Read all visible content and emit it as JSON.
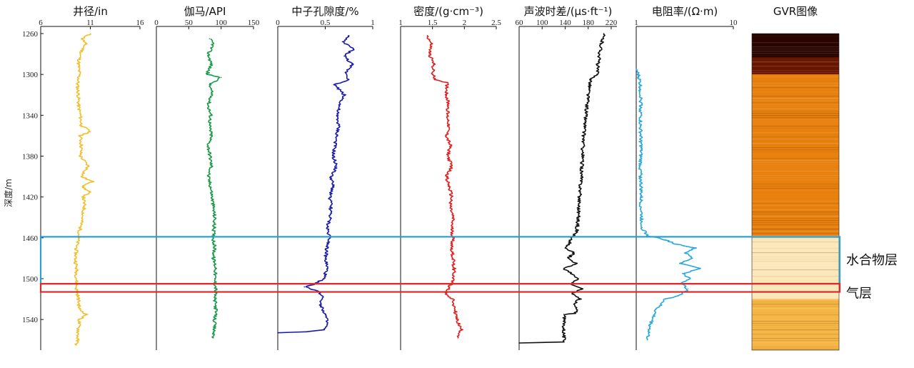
{
  "chart_data": {
    "type": "line",
    "y_axis": {
      "label": "深度/m",
      "range": [
        1260,
        1570
      ],
      "ticks": [
        "1260",
        "1300",
        "1340",
        "1380",
        "1420",
        "1460",
        "1500",
        "1540"
      ],
      "reversed": true
    },
    "tracks": [
      {
        "title": "井径/in",
        "xlim": [
          6,
          16
        ],
        "ticks": [
          "6",
          "11",
          "16"
        ],
        "color": "#f2bf2e",
        "series": [
          {
            "depth": [
              1260,
              1265,
              1270,
              1280,
              1290,
              1300,
              1310,
              1320,
              1330,
              1340,
              1350,
              1356,
              1360,
              1370,
              1380,
              1390,
              1400,
              1405,
              1410,
              1415,
              1420,
              1430,
              1440,
              1450,
              1460,
              1470,
              1480,
              1490,
              1500,
              1510,
              1520,
              1530,
              1535,
              1540,
              1550,
              1560,
              1565
            ],
            "values": [
              11.0,
              10.2,
              10.5,
              10.0,
              9.8,
              9.9,
              9.7,
              9.8,
              9.8,
              10.0,
              10.1,
              11.0,
              10.0,
              10.1,
              10.0,
              10.8,
              10.1,
              11.2,
              10.2,
              10.9,
              10.3,
              10.4,
              10.2,
              10.0,
              9.8,
              9.6,
              9.5,
              9.6,
              9.6,
              9.6,
              9.8,
              9.9,
              10.6,
              9.9,
              9.8,
              9.7,
              9.6
            ]
          }
        ]
      },
      {
        "title": "伽马/API",
        "xlim": [
          0,
          150
        ],
        "ticks": [
          "0",
          "50",
          "100",
          "150"
        ],
        "color": "#1a9a4a",
        "series": [
          {
            "depth": [
              1265,
              1270,
              1280,
              1290,
              1300,
              1303,
              1310,
              1320,
              1330,
              1340,
              1350,
              1360,
              1370,
              1380,
              1390,
              1400,
              1410,
              1420,
              1430,
              1440,
              1450,
              1460,
              1470,
              1480,
              1490,
              1500,
              1510,
              1520,
              1530,
              1540,
              1550,
              1558
            ],
            "values": [
              82,
              88,
              80,
              85,
              78,
              100,
              82,
              86,
              80,
              84,
              82,
              85,
              80,
              83,
              85,
              80,
              84,
              86,
              88,
              90,
              89,
              88,
              90,
              88,
              92,
              90,
              92,
              90,
              92,
              90,
              89,
              88
            ]
          }
        ]
      },
      {
        "title": "中子孔隙度/%",
        "xlim": [
          0,
          1
        ],
        "ticks": [
          "0",
          "0.5",
          "1"
        ],
        "color": "#1a1aa8",
        "series": [
          {
            "depth": [
              1262,
              1268,
              1275,
              1282,
              1290,
              1298,
              1305,
              1310,
              1320,
              1330,
              1340,
              1350,
              1360,
              1370,
              1380,
              1390,
              1400,
              1410,
              1420,
              1430,
              1440,
              1450,
              1460,
              1470,
              1480,
              1490,
              1500,
              1505,
              1508,
              1512,
              1518,
              1525,
              1535,
              1545,
              1550,
              1552,
              1553
            ],
            "values": [
              0.75,
              0.68,
              0.8,
              0.7,
              0.78,
              0.72,
              0.75,
              0.6,
              0.7,
              0.65,
              0.62,
              0.64,
              0.62,
              0.6,
              0.58,
              0.62,
              0.56,
              0.58,
              0.55,
              0.56,
              0.55,
              0.52,
              0.55,
              0.52,
              0.5,
              0.52,
              0.48,
              0.4,
              0.28,
              0.42,
              0.48,
              0.45,
              0.5,
              0.52,
              0.48,
              0.3,
              0.0
            ]
          }
        ]
      },
      {
        "title": "密度/(g·cm⁻³)",
        "xlim": [
          1,
          2.5
        ],
        "ticks": [
          "1",
          "1.5",
          "2",
          "2.5"
        ],
        "color": "#e02020",
        "series": [
          {
            "depth": [
              1262,
              1270,
              1280,
              1290,
              1300,
              1305,
              1308,
              1310,
              1320,
              1330,
              1340,
              1350,
              1360,
              1370,
              1380,
              1390,
              1400,
              1410,
              1420,
              1430,
              1440,
              1450,
              1460,
              1470,
              1480,
              1490,
              1500,
              1510,
              1515,
              1520,
              1530,
              1540,
              1550,
              1558
            ],
            "values": [
              1.42,
              1.48,
              1.45,
              1.52,
              1.5,
              1.55,
              1.72,
              1.73,
              1.72,
              1.75,
              1.73,
              1.76,
              1.72,
              1.78,
              1.74,
              1.8,
              1.72,
              1.76,
              1.8,
              1.78,
              1.82,
              1.8,
              1.82,
              1.8,
              1.82,
              1.84,
              1.83,
              1.75,
              1.7,
              1.82,
              1.85,
              1.88,
              1.95,
              1.9
            ]
          }
        ]
      },
      {
        "title": "声波时差/(μs·ft⁻¹)",
        "xlim": [
          60,
          230
        ],
        "ticks": [
          "60",
          "100",
          "140",
          "180",
          "220"
        ],
        "color": "#111111",
        "series": [
          {
            "depth": [
              1260,
              1270,
              1280,
              1290,
              1300,
              1305,
              1310,
              1320,
              1340,
              1360,
              1380,
              1400,
              1420,
              1440,
              1455,
              1460,
              1465,
              1470,
              1475,
              1480,
              1485,
              1490,
              1495,
              1500,
              1505,
              1510,
              1515,
              1520,
              1525,
              1530,
              1534,
              1535,
              1562,
              1563
            ],
            "values": [
              207,
              203,
              200,
              197,
              195,
              185,
              183,
              180,
              176,
              172,
              170,
              168,
              165,
              163,
              160,
              150,
              148,
              140,
              155,
              145,
              160,
              138,
              150,
              162,
              150,
              168,
              152,
              165,
              155,
              160,
              158,
              138,
              138,
              60
            ]
          }
        ]
      },
      {
        "title": "电阻率/(Ω·m)",
        "xlim": [
          1,
          10
        ],
        "ticks": [
          "1",
          "10"
        ],
        "log": true,
        "color": "#29a8dc",
        "series": [
          {
            "depth": [
              1295,
              1300,
              1310,
              1330,
              1350,
              1370,
              1390,
              1410,
              1430,
              1450,
              1458,
              1462,
              1466,
              1470,
              1475,
              1480,
              1485,
              1490,
              1495,
              1500,
              1505,
              1510,
              1515,
              1520,
              1530,
              1545,
              1560
            ],
            "values": [
              1.0,
              1.05,
              1.1,
              1.12,
              1.1,
              1.12,
              1.1,
              1.12,
              1.12,
              1.15,
              1.3,
              2.0,
              2.5,
              4.0,
              3.2,
              3.8,
              2.8,
              4.5,
              3.0,
              3.6,
              2.9,
              3.4,
              3.0,
              2.0,
              1.6,
              1.4,
              1.3
            ]
          }
        ]
      },
      {
        "title": "GVR图像",
        "type": "heatmap",
        "colors": [
          "#2a0500",
          "#6a1600",
          "#c44a00",
          "#e8800e",
          "#f6b645",
          "#fbe7b8",
          "#fffaf0"
        ],
        "rows": [
          {
            "from": 1260,
            "to": 1283,
            "value": 0.05
          },
          {
            "from": 1283,
            "to": 1300,
            "value": 0.12
          },
          {
            "from": 1300,
            "to": 1350,
            "value": 0.45
          },
          {
            "from": 1350,
            "to": 1400,
            "value": 0.52
          },
          {
            "from": 1400,
            "to": 1458,
            "value": 0.55
          },
          {
            "from": 1458,
            "to": 1470,
            "value": 0.85
          },
          {
            "from": 1470,
            "to": 1505,
            "value": 0.9
          },
          {
            "from": 1505,
            "to": 1520,
            "value": 0.75
          },
          {
            "from": 1520,
            "to": 1570,
            "value": 0.62
          }
        ]
      }
    ],
    "zones": [
      {
        "label": "水合物层",
        "from": 1459,
        "to": 1505,
        "color": "#2b9fd0"
      },
      {
        "label": "气层",
        "from": 1505,
        "to": 1513,
        "color": "#e02a2a"
      }
    ]
  }
}
